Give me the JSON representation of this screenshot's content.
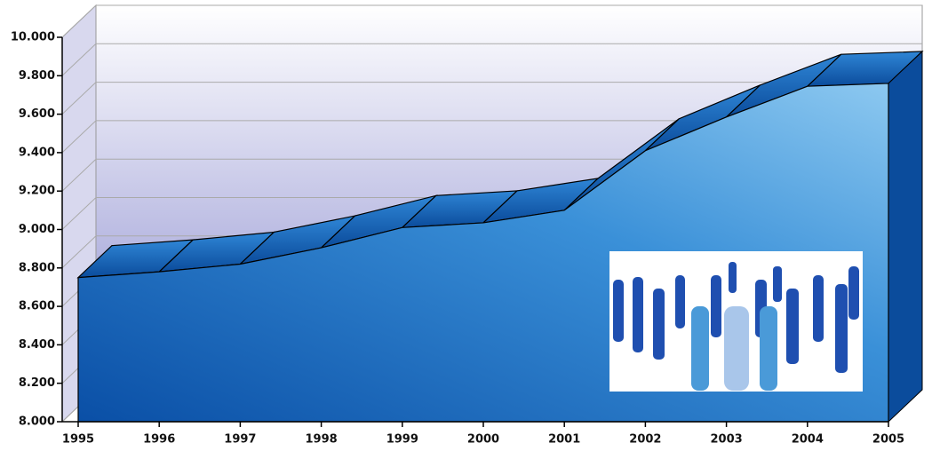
{
  "chart_data": {
    "type": "area3d",
    "categories": [
      "1995",
      "1996",
      "1997",
      "1998",
      "1999",
      "2000",
      "2001",
      "2002",
      "2003",
      "2004",
      "2005"
    ],
    "values": [
      8750,
      8780,
      8820,
      8905,
      9010,
      9035,
      9100,
      9410,
      9585,
      9745,
      9760
    ],
    "color": "#2a7fd0",
    "ylim": [
      8000,
      10000
    ],
    "yticks": [
      {
        "value": 8000,
        "label": "8.000"
      },
      {
        "value": 8200,
        "label": "8.200"
      },
      {
        "value": 8400,
        "label": "8.400"
      },
      {
        "value": 8600,
        "label": "8.600"
      },
      {
        "value": 8800,
        "label": "8.800"
      },
      {
        "value": 9000,
        "label": "9.000"
      },
      {
        "value": 9200,
        "label": "9.200"
      },
      {
        "value": 9400,
        "label": "9.400"
      },
      {
        "value": 9600,
        "label": "9.600"
      },
      {
        "value": 9800,
        "label": "9.800"
      },
      {
        "value": 10000,
        "label": "10.000"
      }
    ],
    "grid": true
  }
}
